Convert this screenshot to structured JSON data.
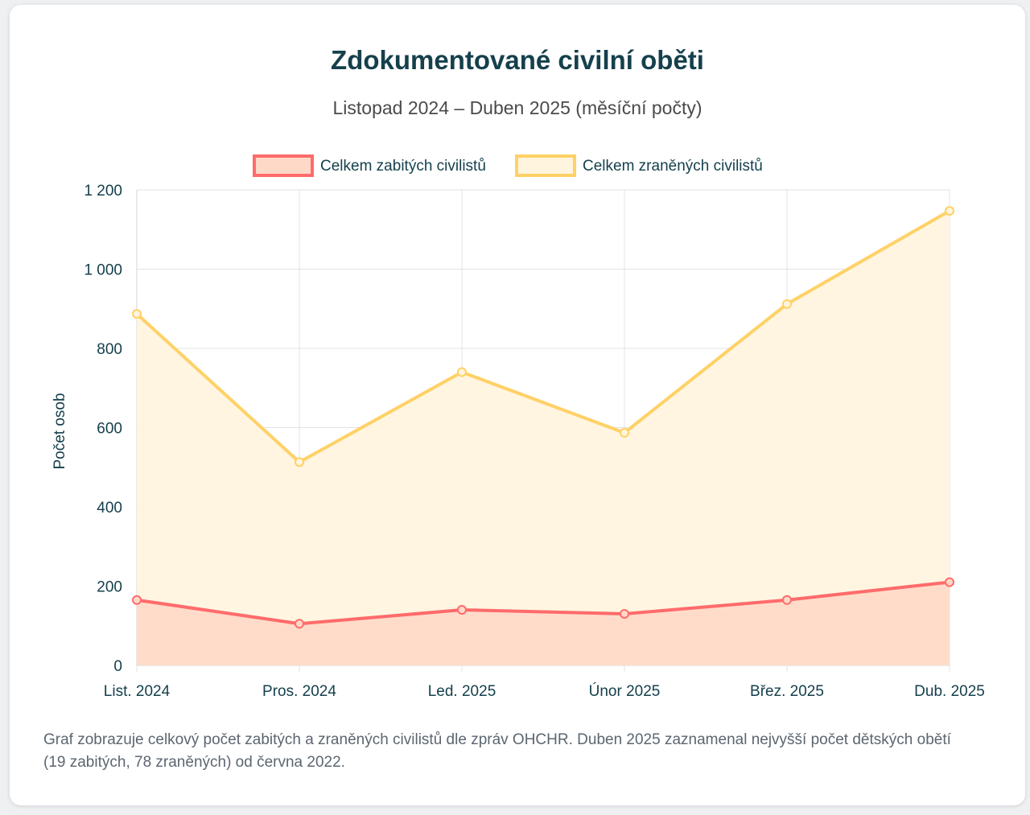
{
  "header": {
    "title": "Zdokumentované civilní oběti",
    "subtitle": "Listopad 2024 – Duben 2025 (měsíční počty)"
  },
  "footnote": "Graf zobrazuje celkový počet zabitých a zraněných civilistů dle zpráv OHCHR. Duben 2025 zaznamenal nejvyšší počet dětských obětí (19 zabitých, 78 zraněných) od června 2022.",
  "chart_data": {
    "type": "area",
    "title": "Zdokumentované civilní oběti",
    "subtitle": "Listopad 2024 – Duben 2025 (měsíční počty)",
    "categories": [
      "List. 2024",
      "Pros. 2024",
      "Led. 2025",
      "Únor 2025",
      "Břez. 2025",
      "Dub. 2025"
    ],
    "series": [
      {
        "name": "Celkem zabitých civilistů",
        "values": [
          165,
          105,
          140,
          130,
          165,
          210
        ],
        "color": "#ff6b6b",
        "fill": "#ffd9c8"
      },
      {
        "name": "Celkem zraněných civilistů",
        "values": [
          887,
          513,
          740,
          587,
          912,
          1147
        ],
        "color": "#ffd166",
        "fill": "#fff4de"
      }
    ],
    "xlabel": "",
    "ylabel": "Počet osob",
    "ylim": [
      0,
      1200
    ],
    "yticks": [
      0,
      200,
      400,
      600,
      800,
      1000,
      1200
    ],
    "ytick_labels": [
      "0",
      "200",
      "400",
      "600",
      "800",
      "1 000",
      "1 200"
    ],
    "grid": true,
    "legend_position": "top"
  }
}
